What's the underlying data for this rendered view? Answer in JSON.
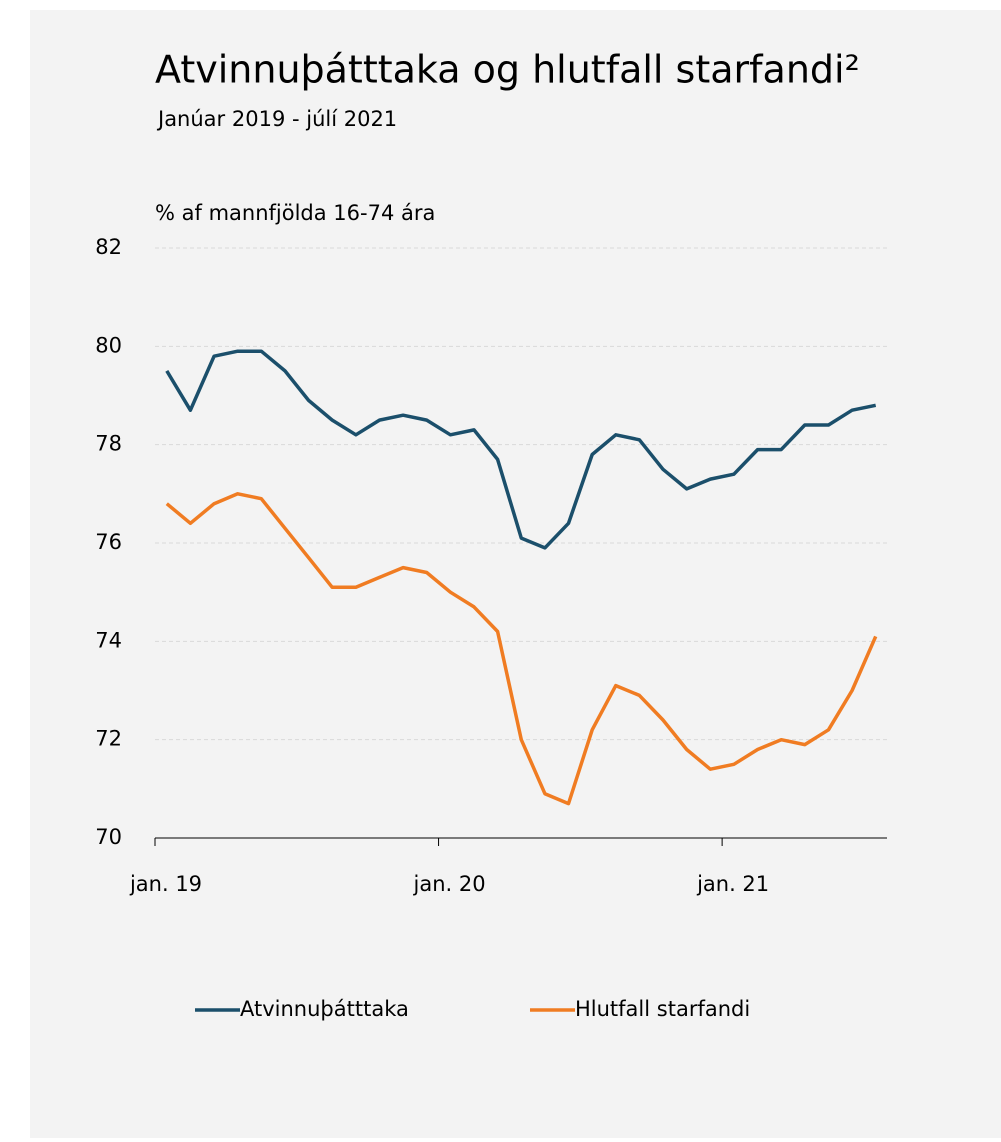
{
  "chart_data": {
    "type": "line",
    "title": "Atvinnuþátttaka og hlutfall starfandi²",
    "subtitle": "Janúar 2019 - júlí 2021",
    "y_axis_label": "% af mannfjölda 16-74 ára",
    "categories": [
      "jan. 19",
      null,
      null,
      null,
      null,
      null,
      null,
      null,
      null,
      null,
      null,
      null,
      "jan. 20",
      null,
      null,
      null,
      null,
      null,
      null,
      null,
      null,
      null,
      null,
      null,
      "jan. 21",
      null,
      null,
      null,
      null,
      null,
      null
    ],
    "series": [
      {
        "name": "Atvinnuþátttaka",
        "color": "#1b4f6b",
        "values": [
          79.5,
          78.7,
          79.8,
          79.9,
          79.9,
          79.5,
          78.9,
          78.5,
          78.2,
          78.5,
          78.6,
          78.5,
          78.2,
          78.3,
          77.7,
          76.1,
          75.9,
          76.4,
          77.8,
          78.2,
          78.1,
          77.5,
          77.1,
          77.3,
          77.4,
          77.9,
          77.9,
          78.4,
          78.4,
          78.7,
          78.8
        ]
      },
      {
        "name": "Hlutfall starfandi",
        "color": "#f07c22",
        "values": [
          76.8,
          76.4,
          76.8,
          77.0,
          76.9,
          76.3,
          75.7,
          75.1,
          75.1,
          75.3,
          75.5,
          75.4,
          75.0,
          74.7,
          74.2,
          72.0,
          70.9,
          70.7,
          72.2,
          73.1,
          72.9,
          72.4,
          71.8,
          71.4,
          71.5,
          71.8,
          72.0,
          71.9,
          72.2,
          73.0,
          74.1
        ]
      }
    ],
    "ylim": [
      70,
      82
    ],
    "yticks": [
      70,
      72,
      74,
      76,
      78,
      80,
      82
    ],
    "grid": true,
    "legend": "bottom"
  }
}
